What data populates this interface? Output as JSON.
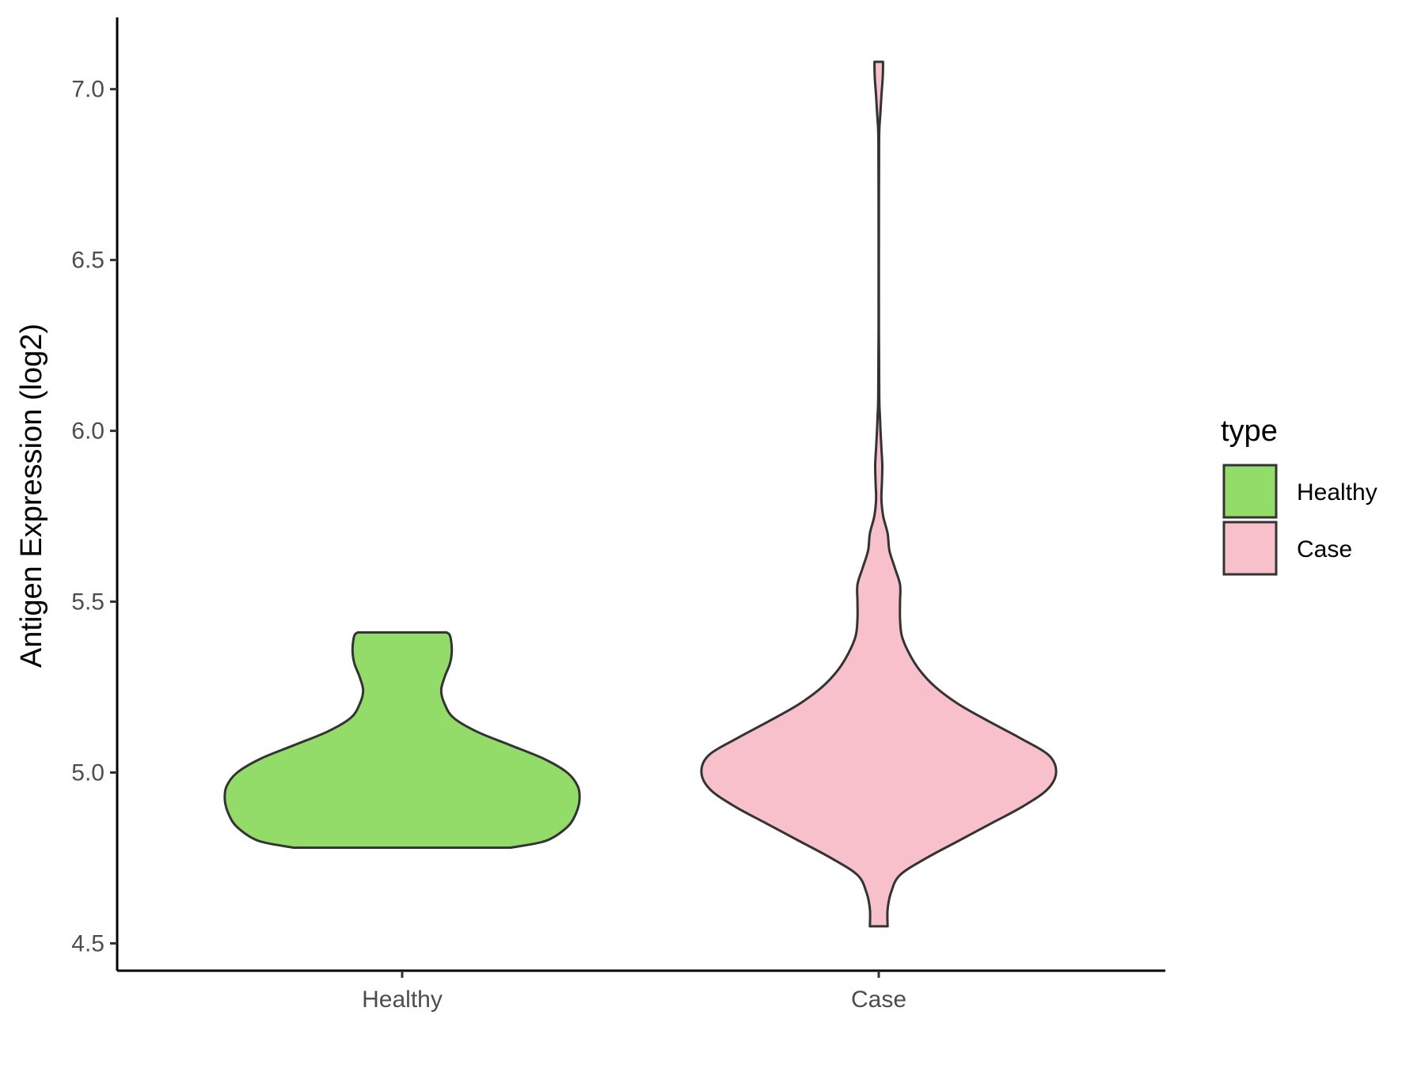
{
  "chart_data": {
    "type": "violin",
    "title": "",
    "xlabel": "",
    "ylabel": "Antigen Expression (log2)",
    "ylim": [
      4.42,
      7.21
    ],
    "y_ticks": [
      "4.5",
      "5.0",
      "5.5",
      "6.0",
      "6.5",
      "7.0"
    ],
    "categories": [
      "Healthy",
      "Case"
    ],
    "legend": {
      "title": "type",
      "position": "right",
      "entries": [
        {
          "label": "Healthy",
          "color": "#93dc6a"
        },
        {
          "label": "Case",
          "color": "#f8c0cb"
        }
      ]
    },
    "series": [
      {
        "category": "Healthy",
        "color": "#93dc6a",
        "y_min": 4.78,
        "y_max": 5.41,
        "profile": [
          {
            "y": 4.78,
            "w": 0.61
          },
          {
            "y": 4.8,
            "w": 0.81
          },
          {
            "y": 4.84,
            "w": 0.93
          },
          {
            "y": 4.88,
            "w": 0.98
          },
          {
            "y": 4.92,
            "w": 1.0
          },
          {
            "y": 4.96,
            "w": 0.99
          },
          {
            "y": 5.0,
            "w": 0.93
          },
          {
            "y": 5.04,
            "w": 0.8
          },
          {
            "y": 5.08,
            "w": 0.61
          },
          {
            "y": 5.12,
            "w": 0.42
          },
          {
            "y": 5.16,
            "w": 0.29
          },
          {
            "y": 5.2,
            "w": 0.24
          },
          {
            "y": 5.24,
            "w": 0.22
          },
          {
            "y": 5.28,
            "w": 0.24
          },
          {
            "y": 5.32,
            "w": 0.27
          },
          {
            "y": 5.36,
            "w": 0.28
          },
          {
            "y": 5.4,
            "w": 0.27
          },
          {
            "y": 5.41,
            "w": 0.25
          }
        ]
      },
      {
        "category": "Case",
        "color": "#f8c0cb",
        "y_min": 4.55,
        "y_max": 7.08,
        "profile": [
          {
            "y": 4.55,
            "w": 0.05
          },
          {
            "y": 4.6,
            "w": 0.05
          },
          {
            "y": 4.65,
            "w": 0.07
          },
          {
            "y": 4.7,
            "w": 0.12
          },
          {
            "y": 4.75,
            "w": 0.27
          },
          {
            "y": 4.8,
            "w": 0.45
          },
          {
            "y": 4.85,
            "w": 0.63
          },
          {
            "y": 4.9,
            "w": 0.81
          },
          {
            "y": 4.95,
            "w": 0.95
          },
          {
            "y": 5.0,
            "w": 1.0
          },
          {
            "y": 5.05,
            "w": 0.96
          },
          {
            "y": 5.1,
            "w": 0.8
          },
          {
            "y": 5.15,
            "w": 0.62
          },
          {
            "y": 5.2,
            "w": 0.45
          },
          {
            "y": 5.25,
            "w": 0.32
          },
          {
            "y": 5.3,
            "w": 0.23
          },
          {
            "y": 5.35,
            "w": 0.17
          },
          {
            "y": 5.4,
            "w": 0.13
          },
          {
            "y": 5.45,
            "w": 0.12
          },
          {
            "y": 5.5,
            "w": 0.12
          },
          {
            "y": 5.55,
            "w": 0.12
          },
          {
            "y": 5.6,
            "w": 0.09
          },
          {
            "y": 5.65,
            "w": 0.06
          },
          {
            "y": 5.7,
            "w": 0.05
          },
          {
            "y": 5.75,
            "w": 0.025
          },
          {
            "y": 5.8,
            "w": 0.015
          },
          {
            "y": 5.85,
            "w": 0.018
          },
          {
            "y": 5.9,
            "w": 0.02
          },
          {
            "y": 5.95,
            "w": 0.015
          },
          {
            "y": 6.0,
            "w": 0.01
          },
          {
            "y": 6.05,
            "w": 0.006
          },
          {
            "y": 6.1,
            "w": 0.003
          },
          {
            "y": 6.3,
            "w": 0.001
          },
          {
            "y": 6.6,
            "w": 0.001
          },
          {
            "y": 6.85,
            "w": 0.002
          },
          {
            "y": 6.92,
            "w": 0.008
          },
          {
            "y": 6.98,
            "w": 0.015
          },
          {
            "y": 7.03,
            "w": 0.022
          },
          {
            "y": 7.06,
            "w": 0.024
          },
          {
            "y": 7.08,
            "w": 0.024
          }
        ]
      }
    ]
  }
}
